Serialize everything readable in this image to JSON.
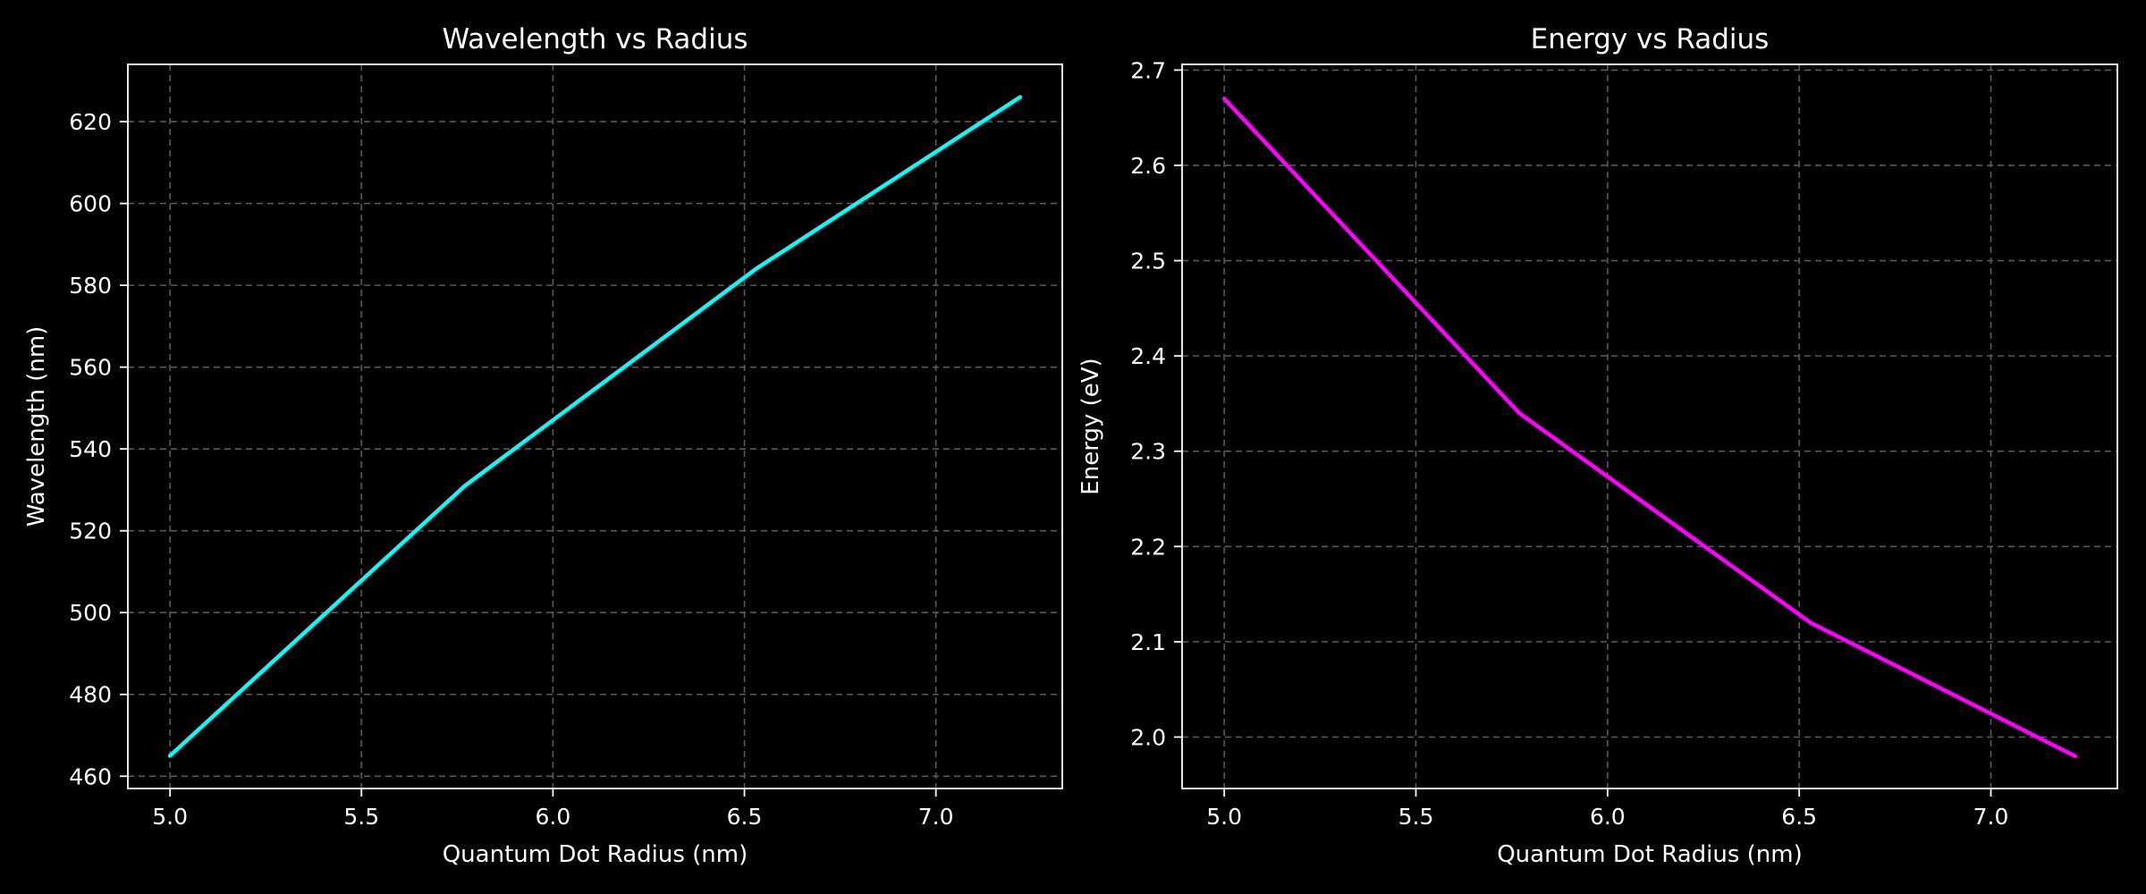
{
  "chart_data": [
    {
      "type": "line",
      "title": "Wavelength vs Radius",
      "xlabel": "Quantum Dot Radius (nm)",
      "ylabel": "Wavelength (nm)",
      "xlim": [
        4.89,
        7.33
      ],
      "ylim": [
        457,
        634
      ],
      "xticks": [
        5.0,
        5.5,
        6.0,
        6.5,
        7.0
      ],
      "yticks": [
        460,
        480,
        500,
        520,
        540,
        560,
        580,
        600,
        620
      ],
      "grid": true,
      "legend": "none",
      "series": [
        {
          "color": "#00ffff",
          "x": [
            5.0,
            5.77,
            6.53,
            7.22
          ],
          "y": [
            465,
            531,
            584,
            626
          ]
        }
      ]
    },
    {
      "type": "line",
      "title": "Energy vs Radius",
      "xlabel": "Quantum Dot Radius (nm)",
      "ylabel": "Energy (eV)",
      "xlim": [
        4.89,
        7.33
      ],
      "ylim": [
        1.946,
        2.706
      ],
      "xticks": [
        5.0,
        5.5,
        6.0,
        6.5,
        7.0
      ],
      "yticks": [
        2.0,
        2.1,
        2.2,
        2.3,
        2.4,
        2.5,
        2.6,
        2.7
      ],
      "grid": true,
      "legend": "none",
      "series": [
        {
          "color": "#ff00ff",
          "x": [
            5.0,
            5.77,
            6.53,
            7.22
          ],
          "y": [
            2.67,
            2.34,
            2.12,
            1.98
          ]
        }
      ]
    }
  ]
}
